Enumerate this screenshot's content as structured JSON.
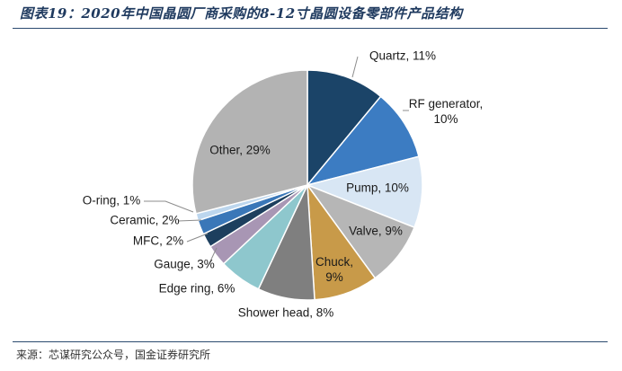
{
  "title": "图表19：2020年中国晶圆厂商采购的8-12寸晶圆设备零部件产品结构",
  "source": "来源：芯谋研究公众号，国金证券研究所",
  "chart_data": {
    "type": "pie",
    "title": "图表19：2020年中国晶圆厂商采购的8-12寸晶圆设备零部件产品结构",
    "categories": [
      "Quartz",
      "RF generator",
      "Pump",
      "Valve",
      "Chuck",
      "Shower head",
      "Edge ring",
      "Gauge",
      "MFC",
      "Ceramic",
      "O-ring",
      "Other"
    ],
    "values": [
      11,
      10,
      10,
      9,
      9,
      8,
      6,
      3,
      2,
      2,
      1,
      29
    ],
    "unit": "%",
    "labels": [
      "Quartz, 11%",
      "RF generator, 10%",
      "Pump, 10%",
      "Valve, 9%",
      "Chuck, 9%",
      "Shower head, 8%",
      "Edge ring, 6%",
      "Gauge, 3%",
      "MFC, 2%",
      "Ceramic, 2%",
      "O-ring, 1%",
      "Other, 29%"
    ],
    "colors": [
      "#1b4468",
      "#3c7cc2",
      "#d8e6f4",
      "#b6b6b6",
      "#c89a49",
      "#7f7f7f",
      "#8ec7cd",
      "#a896b4",
      "#1d3f5e",
      "#3a77b8",
      "#bcd6ee",
      "#b3b3b3"
    ],
    "legend": "none",
    "start_angle": "12 o'clock",
    "direction": "clockwise"
  }
}
